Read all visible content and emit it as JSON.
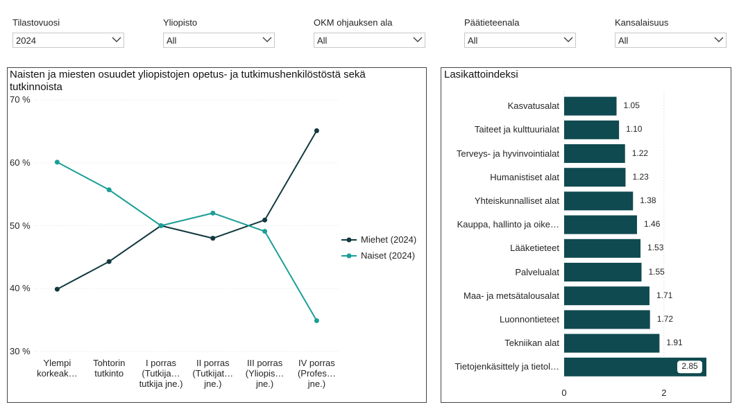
{
  "filters": [
    {
      "label": "Tilastovuosi",
      "value": "2024"
    },
    {
      "label": "Yliopisto",
      "value": "All"
    },
    {
      "label": "OKM ohjauksen ala",
      "value": "All"
    },
    {
      "label": "Päätieteenala",
      "value": "All"
    },
    {
      "label": "Kansalaisuus",
      "value": "All"
    }
  ],
  "chart_data": [
    {
      "type": "line",
      "title": "Naisten ja miesten osuudet yliopistojen opetus- ja tutkimushenkilöstöstä sekä tutkinnoista",
      "categories": [
        "Ylempi korkeak…",
        "Tohtorin tutkinto",
        "I porras (Tutkija… tutkija jne.)",
        "II porras (Tutkijat… jne.)",
        "III porras (Yliopis… jne.)",
        "IV porras (Profes… jne.)"
      ],
      "series": [
        {
          "name": "Miehet (2024)",
          "color": "#12393f",
          "values": [
            39.9,
            44.3,
            50.0,
            48.0,
            50.9,
            65.1
          ]
        },
        {
          "name": "Naiset (2024)",
          "color": "#1b9e96",
          "values": [
            60.1,
            55.7,
            50.0,
            52.0,
            49.1,
            34.9
          ]
        }
      ],
      "ylim": [
        30,
        70
      ],
      "yticks": [
        {
          "value": 30,
          "label": "30 %"
        },
        {
          "value": 40,
          "label": "40 %"
        },
        {
          "value": 50,
          "label": "50 %"
        },
        {
          "value": 60,
          "label": "60 %"
        },
        {
          "value": 70,
          "label": "70 %"
        }
      ],
      "grid": true,
      "legend": "right"
    },
    {
      "type": "hbar",
      "title": "Lasikattoindeksi",
      "categories": [
        "Kasvatusalat",
        "Taiteet ja kulttuurialat",
        "Terveys- ja hyvinvointialat",
        "Humanistiset alat",
        "Yhteiskunnalliset alat",
        "Kauppa, hallinto ja oike…",
        "Lääketieteet",
        "Palvelualat",
        "Maa- ja metsätalousalat",
        "Luonnontieteet",
        "Tekniikan alat",
        "Tietojenkäsittely ja tietol…"
      ],
      "values": [
        1.05,
        1.1,
        1.22,
        1.23,
        1.38,
        1.46,
        1.53,
        1.55,
        1.71,
        1.72,
        1.91,
        2.85
      ],
      "value_labels": [
        "1.05",
        "1.10",
        "1.22",
        "1.23",
        "1.38",
        "1.46",
        "1.53",
        "1.55",
        "1.71",
        "1.72",
        "1.91",
        "2.85"
      ],
      "color": "#0f4a50",
      "xlim": [
        0,
        2.85
      ],
      "xticks": [
        0,
        2
      ],
      "grid": true
    }
  ]
}
